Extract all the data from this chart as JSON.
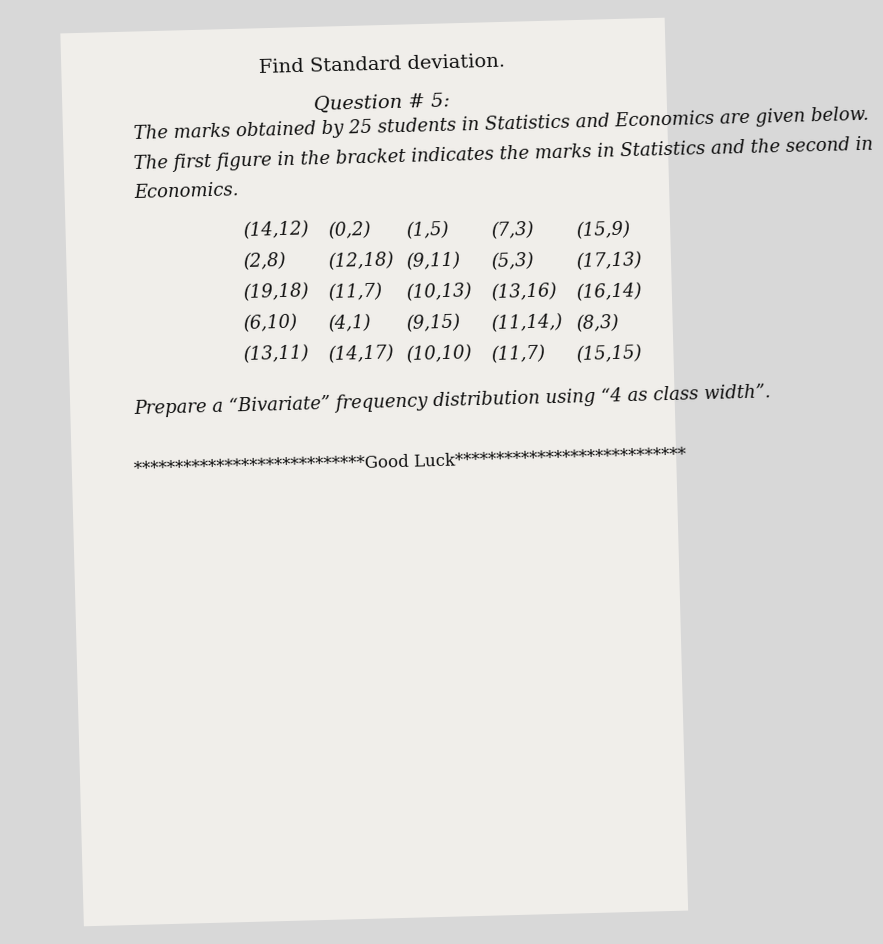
{
  "header": "Find Standard deviation.",
  "question_label": "Question # 5:",
  "line1": "The marks obtained by 25 students in Statistics and Economics are given below.",
  "line2": "The first figure in the bracket indicates the marks in Statistics and the second in",
  "line3": "Economics.",
  "data_rows": [
    [
      [
        "(14,12)",
        "(0,2)",
        "(1,5)",
        "(7,3)",
        "(15,9)"
      ],
      [
        "(2,8)",
        "(12,18)",
        "(9,11)",
        "(5,3)",
        "(17,13)"
      ]
    ],
    [
      [
        "(19,18)",
        "(11,7)",
        "(10,13)",
        "(13,16)",
        "(16,14)"
      ],
      [
        "(6,10)",
        "(4,1)",
        "(9,15)",
        "(11,14,)",
        "(8,3)"
      ]
    ],
    [
      [
        "(13,11)",
        "(14,17)",
        "(10,10)",
        "(11,7)",
        "(15,15)"
      ],
      []
    ]
  ],
  "pairs_col1": [
    "(14,12)",
    "(2,8)",
    "(19,18)",
    "(6,10)",
    "(13,11)"
  ],
  "pairs_col2": [
    "(0,2)",
    "(12,18)",
    "(11,7)",
    "(4,1)",
    "(14,17)"
  ],
  "pairs_col3": [
    "(1,5)",
    "(9,11)",
    "(10,13)",
    "(9,15)",
    "(10,10)"
  ],
  "pairs_col4": [
    "(7,3)",
    "(5,3)",
    "(13,16)",
    "(11,14,)",
    "(11,7)"
  ],
  "pairs_col5": [
    "(15,9)",
    "(17,13)",
    "(16,14)",
    "(8,3)",
    "(15,15)"
  ],
  "instruction": "Prepare a “Bivariate” frequency distribution using “4 as class width”.",
  "footer_stars1": "*****",
  "footer_stars2": "***",
  "footer_text": "**Good Luck**",
  "footer_long": "****************************Good Luck****************************",
  "bg_color": "#d8d8d8",
  "page_color": "#e8e6e0",
  "text_color": "#111111",
  "header_fontsize": 14,
  "question_fontsize": 14,
  "body_fontsize": 13,
  "pair_fontsize": 13,
  "instruction_fontsize": 13,
  "footer_fontsize": 12
}
